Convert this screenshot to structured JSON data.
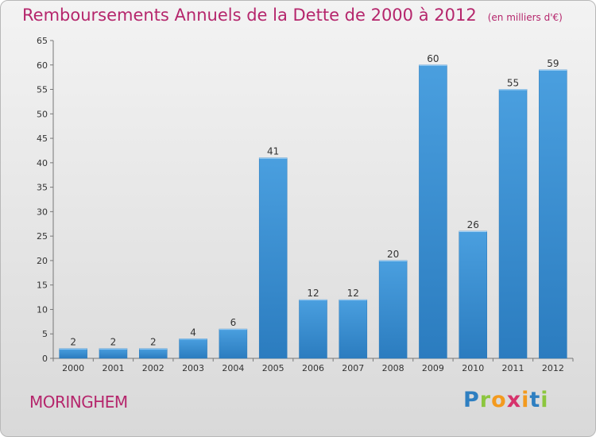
{
  "chart_data": {
    "type": "bar",
    "title": "Remboursements Annuels de la Dette de 2000 à 2012",
    "unit": "(en milliers d'€)",
    "categories": [
      "2000",
      "2001",
      "2002",
      "2003",
      "2004",
      "2005",
      "2006",
      "2007",
      "2008",
      "2009",
      "2010",
      "2011",
      "2012"
    ],
    "values": [
      2,
      2,
      2,
      4,
      6,
      41,
      12,
      12,
      20,
      60,
      26,
      55,
      59
    ],
    "ylim": [
      0,
      65
    ],
    "yticks": [
      0,
      5,
      10,
      15,
      20,
      25,
      30,
      35,
      40,
      45,
      50,
      55,
      60,
      65
    ],
    "grid": false,
    "bar_color": "#4a9fdf",
    "bar_color_dark": "#2b7cbf"
  },
  "commune": "MORINGHEM",
  "logo": {
    "letters": [
      {
        "ch": "P",
        "color": "#2e7fc1"
      },
      {
        "ch": "r",
        "color": "#8cc63e"
      },
      {
        "ch": "o",
        "color": "#f39a1e"
      },
      {
        "ch": "x",
        "color": "#d6336c"
      },
      {
        "ch": "i",
        "color": "#f39a1e"
      },
      {
        "ch": "t",
        "color": "#2e7fc1"
      },
      {
        "ch": "i",
        "color": "#8cc63e"
      }
    ]
  }
}
